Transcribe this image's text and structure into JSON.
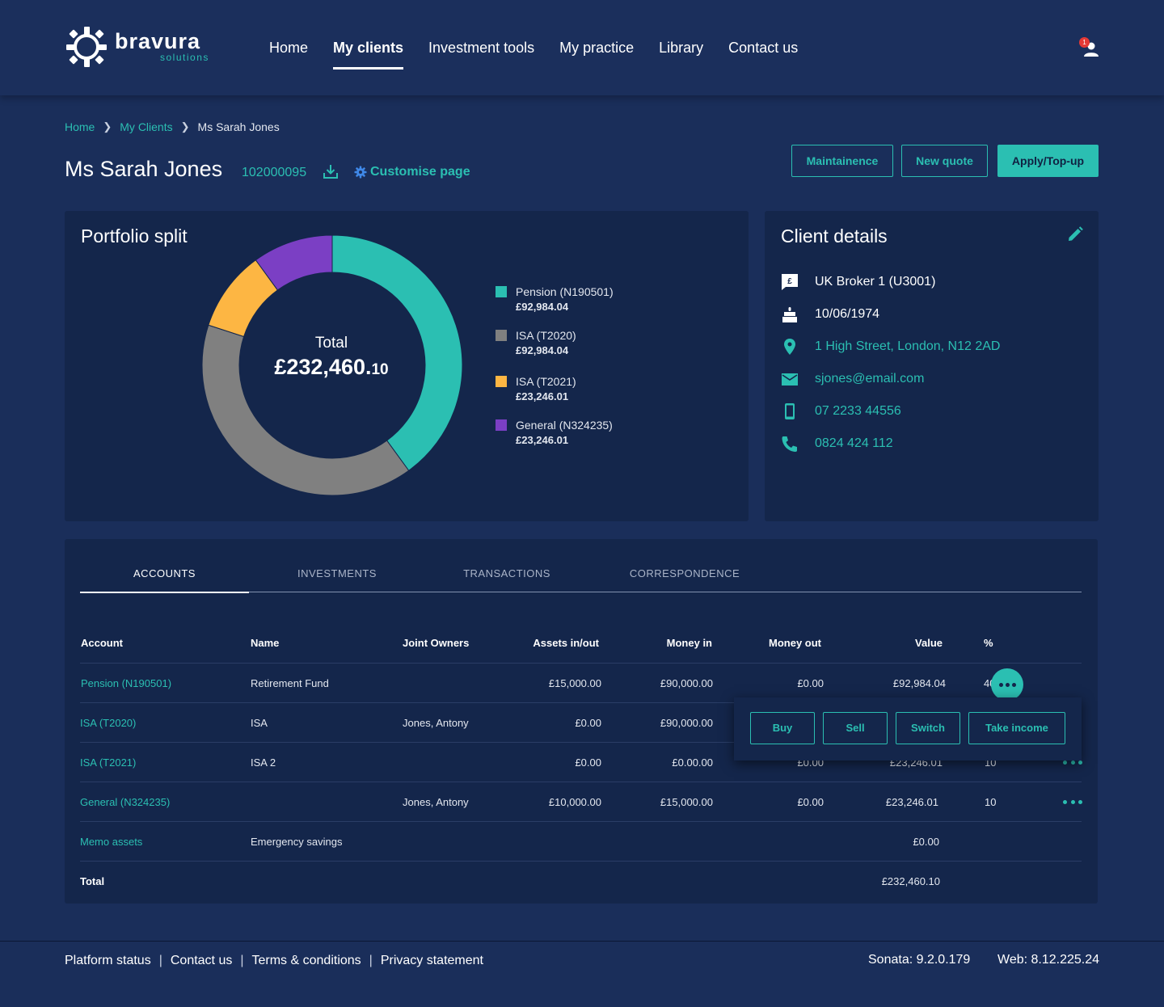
{
  "brand": {
    "name": "bravura",
    "sub": "solutions"
  },
  "nav": [
    {
      "label": "Home",
      "active": false
    },
    {
      "label": "My clients",
      "active": true
    },
    {
      "label": "Investment tools",
      "active": false
    },
    {
      "label": "My practice",
      "active": false
    },
    {
      "label": "Library",
      "active": false
    },
    {
      "label": "Contact us",
      "active": false
    }
  ],
  "notifications": {
    "count": "1"
  },
  "breadcrumb": {
    "home": "Home",
    "clients": "My Clients",
    "current": "Ms Sarah Jones"
  },
  "client": {
    "name": "Ms Sarah Jones",
    "id": "102000095",
    "customise": "Customise page"
  },
  "actions": {
    "maintenance": "Maintainence",
    "new_quote": "New quote",
    "apply": "Apply/Top-up"
  },
  "portfolio": {
    "title": "Portfolio split",
    "total_label": "Total",
    "total_main": "£232,460.",
    "total_pence": "10",
    "legend": [
      {
        "name": "Pension (N190501)",
        "value": "£92,984.04",
        "color": "#2bbfb2"
      },
      {
        "name": "ISA (T2020)",
        "value": "£92,984.04",
        "color": "#808080"
      },
      {
        "name": "ISA (T2021)",
        "value": "£23,246.01",
        "color": "#fdb643"
      },
      {
        "name": "General (N324235)",
        "value": "£23,246.01",
        "color": "#7b3fc4"
      }
    ]
  },
  "chart_data": {
    "type": "pie",
    "categories": [
      "Pension (N190501)",
      "ISA (T2020)",
      "ISA (T2021)",
      "General (N324235)"
    ],
    "values": [
      92984.04,
      92984.04,
      23246.01,
      23246.01
    ],
    "colors": [
      "#2bbfb2",
      "#808080",
      "#fdb643",
      "#7b3fc4"
    ]
  },
  "client_details": {
    "title": "Client details",
    "broker": "UK Broker 1 (U3001)",
    "dob": "10/06/1974",
    "address": "1 High Street, London, N12 2AD",
    "email": "sjones@email.com",
    "mobile": "07 2233 44556",
    "phone": "0824 424 112"
  },
  "tabs": [
    "ACCOUNTS",
    "INVESTMENTS",
    "TRANSACTIONS",
    "CORRESPONDENCE"
  ],
  "table": {
    "headers": [
      "Account",
      "Name",
      "Joint Owners",
      "Assets in/out",
      "Money in",
      "Money out",
      "Value",
      "%"
    ],
    "rows": [
      [
        "Pension (N190501)",
        "Retirement Fund",
        "",
        "£15,000.00",
        "£90,000.00",
        "£0.00",
        "£92,984.04",
        "40"
      ],
      [
        "ISA (T2020)",
        "ISA",
        "Jones, Antony",
        "£0.00",
        "£90,000.00",
        "",
        "",
        ""
      ],
      [
        "ISA (T2021)",
        "ISA 2",
        "",
        "£0.00",
        "£0.00.00",
        "£0.00",
        "£23,246.01",
        "10"
      ],
      [
        "General (N324235)",
        "",
        "Jones, Antony",
        "£10,000.00",
        "£15,000.00",
        "£0.00",
        "£23,246.01",
        "10"
      ],
      [
        "Memo assets",
        "Emergency savings",
        "",
        "",
        "",
        "",
        "£0.00",
        ""
      ]
    ],
    "total_label": "Total",
    "total_value": "£232,460.10"
  },
  "popup": {
    "buy": "Buy",
    "sell": "Sell",
    "switch": "Switch",
    "take_income": "Take income"
  },
  "footer": {
    "links": [
      "Platform status",
      "Contact us",
      "Terms & conditions",
      "Privacy statement"
    ],
    "sonata": "Sonata: 9.2.0.179",
    "web": "Web: 8.12.225.24"
  }
}
